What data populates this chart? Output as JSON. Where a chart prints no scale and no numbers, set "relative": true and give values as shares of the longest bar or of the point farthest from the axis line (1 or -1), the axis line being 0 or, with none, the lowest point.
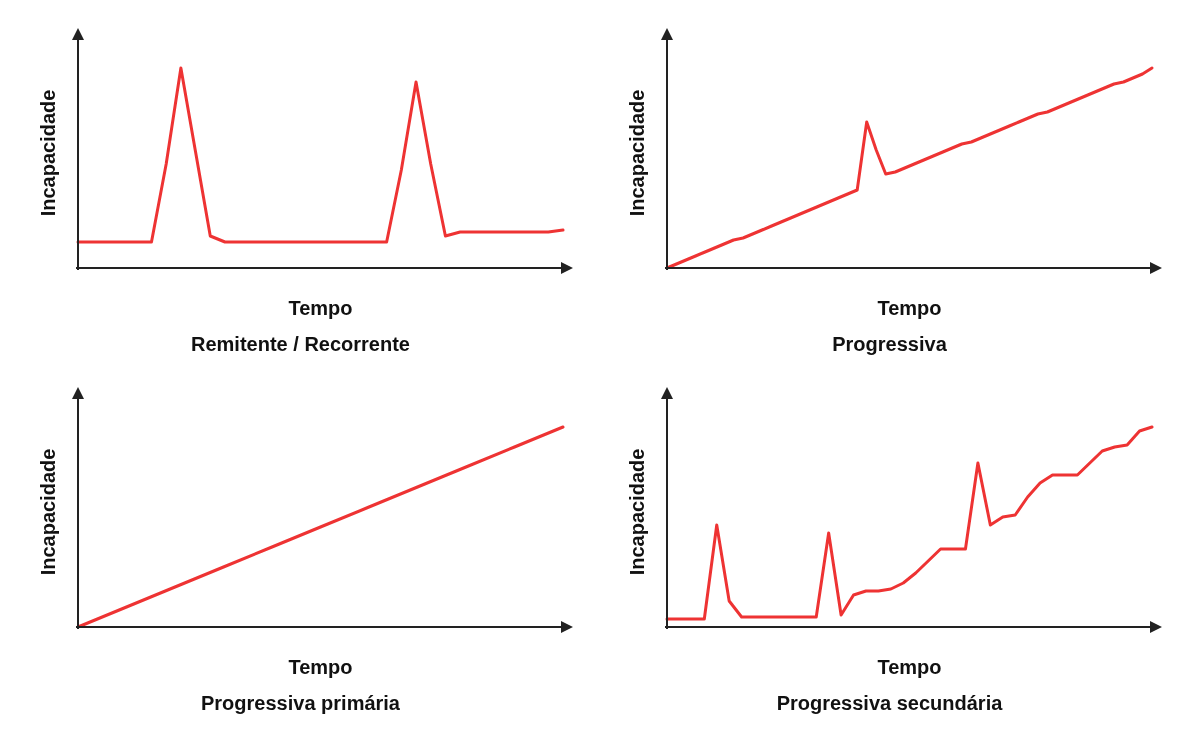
{
  "chart_data": [
    {
      "type": "line",
      "relative": true,
      "title": "Remitente / Recorrente",
      "xlabel": "Tempo",
      "ylabel": "Incapacidade",
      "categories": [
        null,
        null,
        null,
        null,
        null,
        null,
        null,
        null,
        null,
        null,
        null,
        null,
        null,
        null,
        null,
        null,
        null,
        null,
        null,
        null,
        null,
        null,
        null,
        null,
        null,
        null,
        null,
        null,
        null,
        null,
        null,
        null,
        null,
        null
      ],
      "series": [
        {
          "color": "#ee3333",
          "values": [
            0.13,
            0.13,
            0.13,
            0.13,
            0.13,
            0.13,
            0.52,
            1,
            0.58,
            0.16,
            0.13,
            0.13,
            0.13,
            0.13,
            0.13,
            0.13,
            0.13,
            0.13,
            0.13,
            0.13,
            0.13,
            0.13,
            0.49,
            0.93,
            0.52,
            0.16,
            0.18,
            0.18,
            0.18,
            0.18,
            0.18,
            0.18,
            0.18,
            0.19
          ]
        }
      ]
    },
    {
      "type": "line",
      "relative": true,
      "title": "Progressiva",
      "xlabel": "Tempo",
      "ylabel": "Incapacidade",
      "categories": [
        null,
        null,
        null,
        null,
        null,
        null,
        null,
        null,
        null,
        null,
        null,
        null,
        null,
        null,
        null,
        null,
        null,
        null,
        null,
        null,
        null,
        null,
        null,
        null,
        null,
        null,
        null,
        null,
        null,
        null,
        null,
        null,
        null,
        null,
        null,
        null,
        null,
        null,
        null,
        null,
        null,
        null,
        null,
        null,
        null,
        null,
        null,
        null,
        null,
        null,
        null,
        null
      ],
      "series": [
        {
          "color": "#ee3333",
          "values": [
            0,
            0.02,
            0.04,
            0.06,
            0.08,
            0.1,
            0.12,
            0.14,
            0.15,
            0.17,
            0.19,
            0.21,
            0.23,
            0.25,
            0.27,
            0.29,
            0.31,
            0.33,
            0.35,
            0.37,
            0.39,
            0.73,
            0.59,
            0.47,
            0.48,
            0.5,
            0.52,
            0.54,
            0.56,
            0.58,
            0.6,
            0.62,
            0.63,
            0.65,
            0.67,
            0.69,
            0.71,
            0.73,
            0.75,
            0.77,
            0.78,
            0.8,
            0.82,
            0.84,
            0.86,
            0.88,
            0.9,
            0.92,
            0.93,
            0.95,
            0.97,
            1
          ]
        }
      ]
    },
    {
      "type": "line",
      "relative": true,
      "title": "Progressiva primária",
      "xlabel": "Tempo",
      "ylabel": "Incapacidade",
      "categories": [
        null,
        null,
        null,
        null,
        null,
        null,
        null,
        null,
        null,
        null,
        null
      ],
      "series": [
        {
          "color": "#ee3333",
          "values": [
            0,
            0.1,
            0.2,
            0.3,
            0.4,
            0.5,
            0.6,
            0.7,
            0.8,
            0.9,
            1
          ]
        }
      ]
    },
    {
      "type": "line",
      "relative": true,
      "title": "Progressiva secundária",
      "xlabel": "Tempo",
      "ylabel": "Incapacidade",
      "categories": [
        null,
        null,
        null,
        null,
        null,
        null,
        null,
        null,
        null,
        null,
        null,
        null,
        null,
        null,
        null,
        null,
        null,
        null,
        null,
        null,
        null,
        null,
        null,
        null,
        null,
        null,
        null,
        null,
        null,
        null,
        null,
        null,
        null,
        null,
        null,
        null,
        null,
        null,
        null,
        null
      ],
      "series": [
        {
          "color": "#ee3333",
          "values": [
            0.04,
            0.04,
            0.04,
            0.04,
            0.51,
            0.13,
            0.05,
            0.05,
            0.05,
            0.05,
            0.05,
            0.05,
            0.05,
            0.47,
            0.06,
            0.16,
            0.18,
            0.18,
            0.19,
            0.22,
            0.27,
            0.33,
            0.39,
            0.39,
            0.39,
            0.82,
            0.51,
            0.55,
            0.56,
            0.65,
            0.72,
            0.76,
            0.76,
            0.76,
            0.82,
            0.88,
            0.9,
            0.91,
            0.98,
            1
          ]
        }
      ]
    }
  ]
}
